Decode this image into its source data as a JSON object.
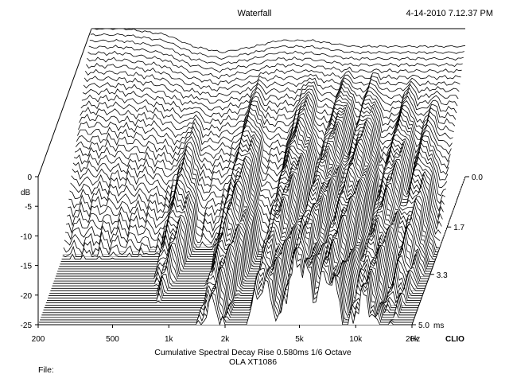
{
  "chart_data": {
    "type": "waterfall",
    "title": "Waterfall",
    "timestamp": "4-14-2010 7.12.37 PM",
    "subtitle": "Cumulative Spectral Decay   Rise 0.580ms   1/6 Octave",
    "subtitle2": "OLA XT1086",
    "file_label": "File:",
    "brand": "CLIO",
    "y_axis": {
      "label": "dB",
      "ticks": [
        "0",
        "-5",
        "-10",
        "-15",
        "-20",
        "-25"
      ],
      "range": [
        -25,
        0
      ]
    },
    "x_axis": {
      "scale": "log",
      "unit": "Hz",
      "ticks": [
        "200",
        "500",
        "1k",
        "2k",
        "5k",
        "10k",
        "20k"
      ],
      "tick_values": [
        200,
        500,
        1000,
        2000,
        5000,
        10000,
        20000
      ],
      "range": [
        200,
        20000
      ]
    },
    "z_axis": {
      "unit": "ms",
      "ticks": [
        "0.0",
        "1.7",
        "3.3",
        "5.0"
      ],
      "tick_values": [
        0.0,
        1.7,
        3.3,
        5.0
      ],
      "range": [
        0,
        5.0
      ]
    },
    "slices": 62,
    "initial_response_db": [
      {
        "f": 200,
        "db": 0
      },
      {
        "f": 300,
        "db": 0
      },
      {
        "f": 500,
        "db": -1
      },
      {
        "f": 700,
        "db": -3
      },
      {
        "f": 1000,
        "db": -4
      },
      {
        "f": 1500,
        "db": -3
      },
      {
        "f": 2000,
        "db": -2
      },
      {
        "f": 3000,
        "db": -2
      },
      {
        "f": 5000,
        "db": -3
      },
      {
        "f": 8000,
        "db": -3
      },
      {
        "f": 12000,
        "db": -3
      },
      {
        "f": 20000,
        "db": -3
      }
    ],
    "resonances": [
      {
        "f": 800,
        "decay_ms": 1.7
      },
      {
        "f": 1700,
        "decay_ms": 2.4
      },
      {
        "f": 3200,
        "decay_ms": 2.8
      },
      {
        "f": 5000,
        "decay_ms": 4.2
      },
      {
        "f": 7000,
        "decay_ms": 3.4
      },
      {
        "f": 11000,
        "decay_ms": 2.6
      },
      {
        "f": 15000,
        "decay_ms": 1.9
      }
    ],
    "grid": false,
    "legend": "none"
  }
}
